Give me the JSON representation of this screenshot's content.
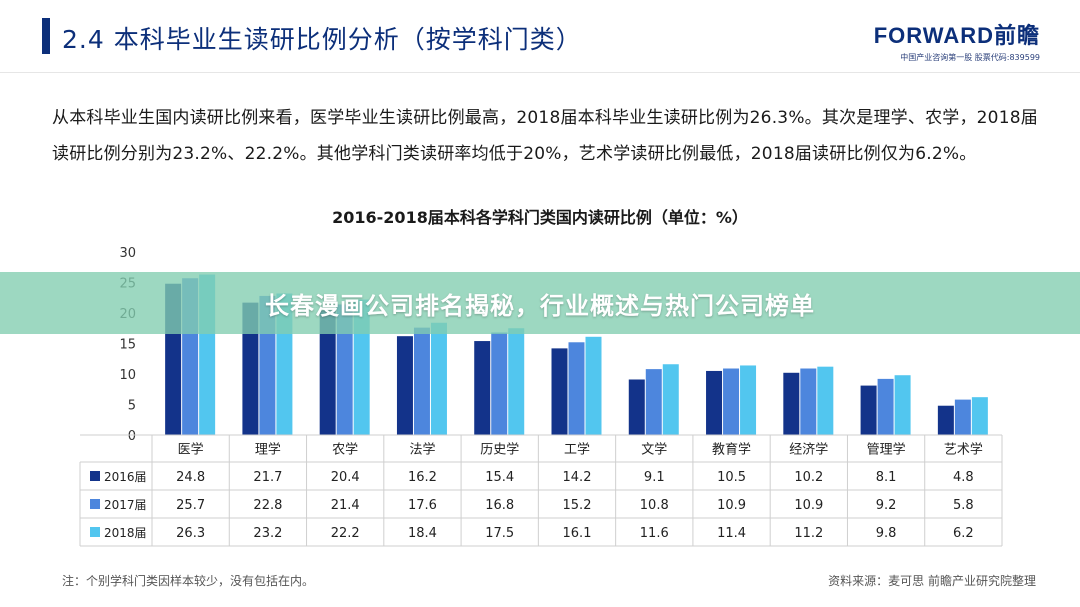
{
  "header": {
    "title": "2.4  本科毕业生读研比例分析（按学科门类）",
    "brand": "FORWARD前瞻",
    "brand_sub": "中国产业咨询第一股  股票代码:839599"
  },
  "intro": {
    "text": "从本科毕业生国内读研比例来看，医学毕业生读研比例最高，2018届本科毕业生读研比例为26.3%。其次是理学、农学，2018届读研比例分别为23.2%、22.2%。其他学科门类读研率均低于20%，艺术学读研比例最低，2018届读研比例仅为6.2%。"
  },
  "banner": {
    "text": "长春漫画公司排名揭秘，行业概述与热门公司榜单"
  },
  "footer": {
    "note": "注：个别学科门类因样本较少，没有包括在内。",
    "source": "资料来源：麦可思  前瞻产业研究院整理"
  },
  "colors": {
    "header_blue": "#0c2f7a",
    "series_2016": "#13338a",
    "series_2017": "#4d86dd",
    "series_2018": "#52c6ef"
  },
  "chart_data": {
    "type": "bar",
    "title": "2016-2018届本科各学科门类国内读研比例（单位：%）",
    "categories": [
      "医学",
      "理学",
      "农学",
      "法学",
      "历史学",
      "工学",
      "文学",
      "教育学",
      "经济学",
      "管理学",
      "艺术学"
    ],
    "series": [
      {
        "name": "2016届",
        "values": [
          24.8,
          21.7,
          20.4,
          16.2,
          15.4,
          14.2,
          9.1,
          10.5,
          10.2,
          8.1,
          4.8
        ]
      },
      {
        "name": "2017届",
        "values": [
          25.7,
          22.8,
          21.4,
          17.6,
          16.8,
          15.2,
          10.8,
          10.9,
          10.9,
          9.2,
          5.8
        ]
      },
      {
        "name": "2018届",
        "values": [
          26.3,
          23.2,
          22.2,
          18.4,
          17.5,
          16.1,
          11.6,
          11.4,
          11.2,
          9.8,
          6.2
        ]
      }
    ],
    "yticks": [
      0,
      5,
      10,
      15,
      20,
      25,
      30
    ],
    "ylim": [
      0,
      30
    ],
    "grid": false,
    "legend": "data-table-below"
  }
}
